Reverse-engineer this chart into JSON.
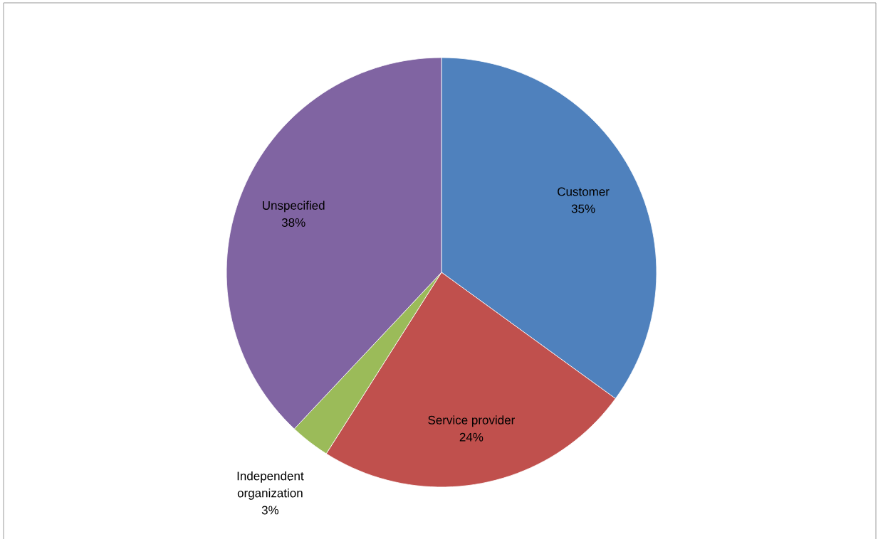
{
  "chart_data": {
    "type": "pie",
    "categories": [
      "Customer",
      "Service provider",
      "Independent organization",
      "Unspecified"
    ],
    "values": [
      35,
      24,
      3,
      38
    ],
    "value_labels": [
      "35%",
      "24%",
      "3%",
      "38%"
    ],
    "colors": [
      "#4f81bd",
      "#c0504d",
      "#9bbb59",
      "#8064a2"
    ]
  }
}
